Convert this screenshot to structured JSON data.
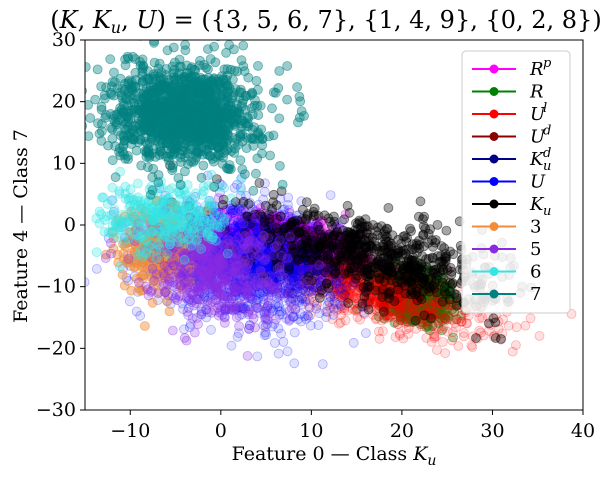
{
  "chart_data": {
    "type": "scatter",
    "title": "(K, K_u, U) = ({3, 5, 6, 7}, {1, 4, 9}, {0, 2, 8})",
    "xlabel": "Feature 0 — Class K_u",
    "ylabel": "Feature 4 — Class 7",
    "xlim": [
      -15,
      40
    ],
    "ylim": [
      -30,
      30
    ],
    "x_ticks": [
      "−10",
      "0",
      "10",
      "20",
      "30",
      "40"
    ],
    "y_ticks": [
      "−30",
      "−20",
      "−10",
      "0",
      "10",
      "20",
      "30"
    ],
    "grid": false,
    "legend_position": "top-right",
    "series": [
      {
        "name": "R^p",
        "color": "#ff00ff",
        "center": [
          8,
          -3
        ],
        "spread": [
          3.5,
          2.2
        ],
        "corr": -0.5,
        "count": 1100,
        "opacity": 0.25
      },
      {
        "name": "R",
        "color": "#008000",
        "center": [
          21.5,
          -11.5
        ],
        "spread": [
          2.0,
          2.0
        ],
        "corr": -0.3,
        "count": 700,
        "opacity": 0.3
      },
      {
        "name": "U^l",
        "color": "#ff0000",
        "center": [
          17,
          -11
        ],
        "spread": [
          6.0,
          3.5
        ],
        "corr": -0.7,
        "count": 800,
        "opacity": 0.12
      },
      {
        "name": "U^d",
        "color": "#8b0000",
        "center": [
          15,
          -7
        ],
        "spread": [
          4.0,
          3.0
        ],
        "corr": -0.5,
        "count": 80,
        "opacity": 0.2
      },
      {
        "name": "K_u^d",
        "color": "#00008b",
        "center": [
          5,
          -5
        ],
        "spread": [
          4.0,
          3.0
        ],
        "corr": -0.3,
        "count": 80,
        "opacity": 0.2
      },
      {
        "name": "U",
        "color": "#0000ff",
        "center": [
          3,
          -6
        ],
        "spread": [
          5.0,
          4.5
        ],
        "corr": -0.2,
        "count": 1500,
        "opacity": 0.12
      },
      {
        "name": "K_u",
        "color": "#000000",
        "center": [
          17,
          -5
        ],
        "spread": [
          7.0,
          4.0
        ],
        "corr": -0.6,
        "count": 700,
        "opacity": 0.35
      },
      {
        "name": "3",
        "color": "#f28c38",
        "center": [
          -7,
          -4
        ],
        "spread": [
          2.0,
          3.5
        ],
        "corr": 0.0,
        "count": 250,
        "opacity": 0.45
      },
      {
        "name": "5",
        "color": "#8a2be2",
        "center": [
          -1,
          -7
        ],
        "spread": [
          4.0,
          4.0
        ],
        "corr": -0.2,
        "count": 500,
        "opacity": 0.25
      },
      {
        "name": "6",
        "color": "#33e6e6",
        "center": [
          -6,
          1
        ],
        "spread": [
          3.5,
          3.0
        ],
        "corr": 0.0,
        "count": 300,
        "opacity": 0.3
      },
      {
        "name": "7",
        "color": "#008080",
        "center": [
          -4,
          18
        ],
        "spread": [
          4.0,
          4.0
        ],
        "corr": 0.0,
        "count": 1300,
        "opacity": 0.4
      }
    ]
  }
}
